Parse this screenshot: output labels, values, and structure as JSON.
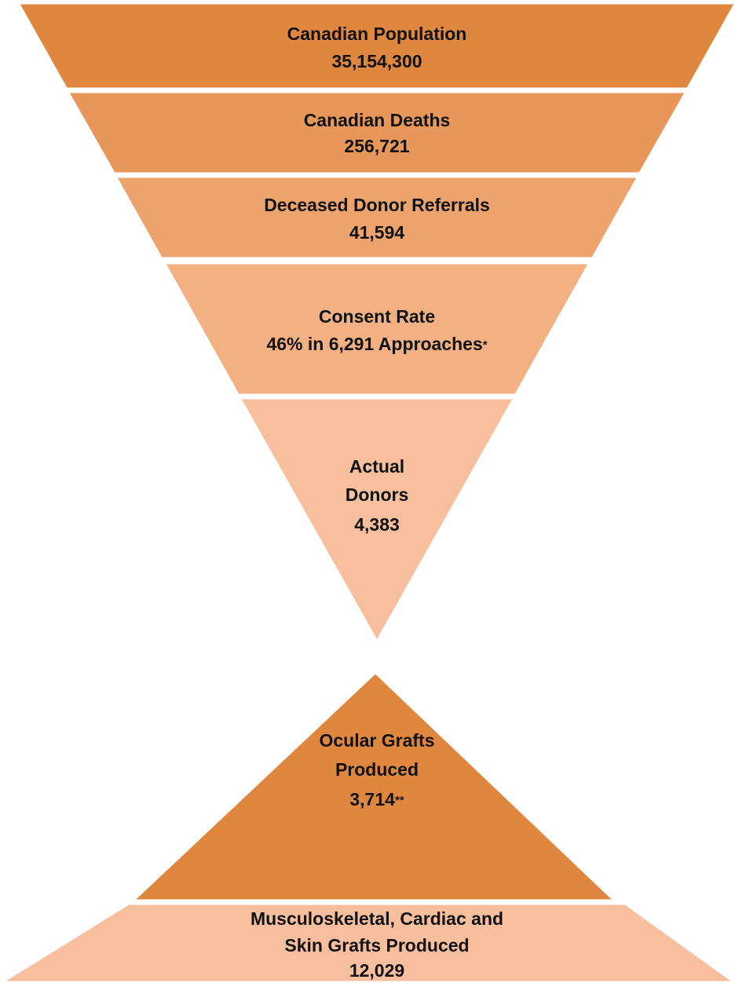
{
  "funnel": [
    {
      "lines": [
        "Canadian Population",
        "35,154,300"
      ]
    },
    {
      "lines": [
        "Canadian Deaths",
        "256,721"
      ]
    },
    {
      "lines": [
        "Deceased Donor Referrals",
        "41,594"
      ]
    },
    {
      "lines": [
        "Consent Rate",
        "46% in 6,291 Approaches"
      ],
      "note": "*"
    },
    {
      "lines": [
        "Actual",
        "Donors",
        "4,383"
      ]
    }
  ],
  "pyramid": [
    {
      "lines": [
        "Ocular Grafts",
        "Produced",
        "3,714"
      ],
      "note": "**"
    },
    {
      "lines": [
        "Musculoskeletal, Cardiac and",
        "Skin Grafts Produced",
        "12,029"
      ]
    }
  ]
}
